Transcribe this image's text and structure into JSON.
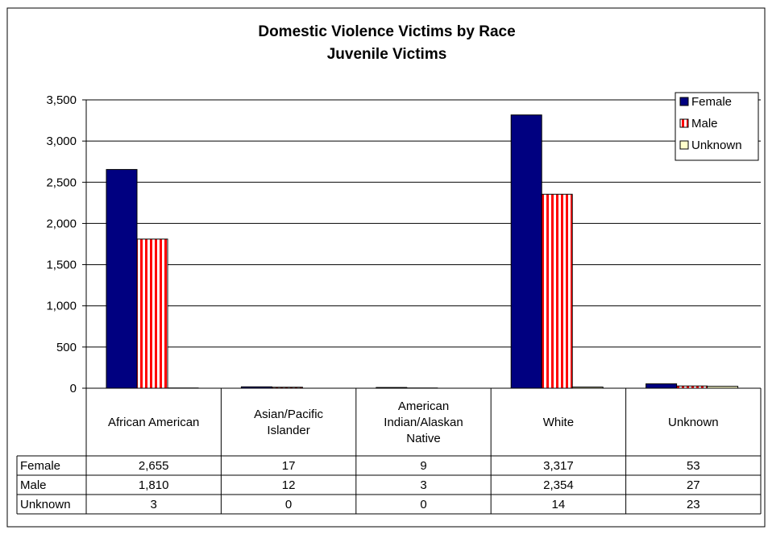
{
  "chart_data": {
    "type": "bar",
    "title": "Domestic Violence Victims by Race",
    "subtitle": "Juvenile Victims",
    "categories": [
      "African American",
      "Asian/Pacific Islander",
      "American Indian/Alaskan Native",
      "White",
      "Unknown"
    ],
    "series": [
      {
        "name": "Female",
        "values": [
          2655,
          17,
          9,
          3317,
          53
        ],
        "display": [
          "2,655",
          "17",
          "9",
          "3,317",
          "53"
        ]
      },
      {
        "name": "Male",
        "values": [
          1810,
          12,
          3,
          2354,
          27
        ],
        "display": [
          "1,810",
          "12",
          "3",
          "2,354",
          "27"
        ]
      },
      {
        "name": "Unknown",
        "values": [
          3,
          0,
          0,
          14,
          23
        ],
        "display": [
          "3",
          "0",
          "0",
          "14",
          "23"
        ]
      }
    ],
    "ylim": [
      0,
      3500
    ],
    "yticks": [
      0,
      500,
      1000,
      1500,
      2000,
      2500,
      3000,
      3500
    ],
    "ytick_labels": [
      "0",
      "500",
      "1,000",
      "1,500",
      "2,000",
      "2,500",
      "3,000",
      "3,500"
    ],
    "xlabel": "",
    "ylabel": "",
    "grid": true,
    "legend_position": "top-right",
    "data_table": true,
    "colors": {
      "Female": "#000080",
      "Male": "#ff0000",
      "Unknown": "#ffffcc"
    }
  }
}
